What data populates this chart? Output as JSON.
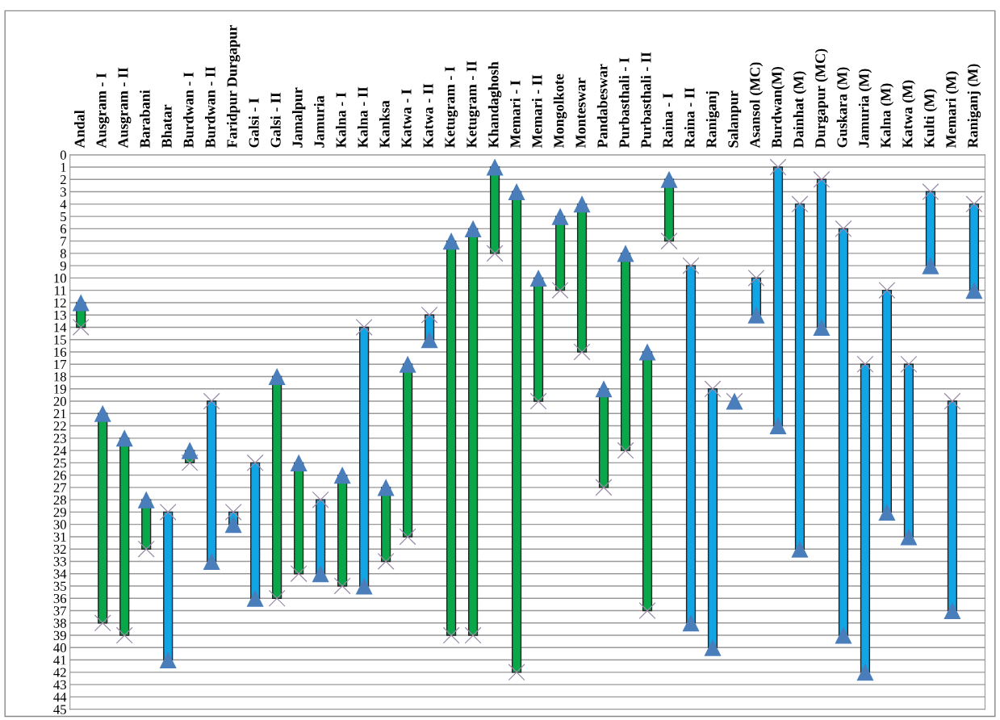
{
  "chart_data": {
    "type": "bar",
    "categories": [
      "Andal",
      "Ausgram - I",
      "Ausgram - II",
      "Barabani",
      "Bhatar",
      "Burdwan - I",
      "Burdwan - II",
      "Faridpur Durgapur",
      "Galsi - I",
      "Galsi - II",
      "Jamalpur",
      "Jamuria",
      "Kalna - I",
      "Kalna - II",
      "Kanksa",
      "Katwa - I",
      "Katwa - II",
      "Ketugram - I",
      "Ketugram - II",
      "Khandaghosh",
      "Memari - I",
      "Memari - II",
      "Mongolkote",
      "Monteswar",
      "Pandabeswar",
      "Purbasthali - I",
      "Purbasthali - II",
      "Raina - I",
      "Raina - II",
      "Raniganj",
      "Salanpur",
      "Asansol (MC)",
      "Burdwan(M)",
      "Dainhat (M)",
      "Durgapur (MC)",
      "Guskara (M)",
      "Jamuria (M)",
      "Kalna (M)",
      "Katwa (M)",
      "Kulti (M)",
      "Memari (M)",
      "Raniganj (M)"
    ],
    "series": [
      {
        "base": [
          12,
          21,
          23,
          28,
          41,
          24,
          33,
          30,
          36,
          18,
          25,
          34,
          26,
          35,
          27,
          17,
          15,
          7,
          6,
          1,
          3,
          10,
          5,
          4,
          19,
          8,
          16,
          2,
          38,
          40,
          null,
          13,
          22,
          32,
          14,
          39,
          42,
          29,
          31,
          9,
          37,
          11
        ],
        "values": [
          2,
          17,
          16,
          4,
          -12,
          1,
          -13,
          -1,
          -11,
          18,
          9,
          -6,
          9,
          -21,
          6,
          14,
          -2,
          32,
          33,
          7,
          39,
          10,
          6,
          12,
          8,
          16,
          21,
          5,
          -29,
          -21,
          null,
          -3,
          -21,
          -28,
          -12,
          -33,
          -25,
          -18,
          -14,
          -6,
          -17,
          -7
        ],
        "colors": [
          "#0aa64a",
          "#0aa64a",
          "#0aa64a",
          "#0aa64a",
          "#12a5e6",
          "#0aa64a",
          "#12a5e6",
          "#12a5e6",
          "#12a5e6",
          "#0aa64a",
          "#0aa64a",
          "#12a5e6",
          "#0aa64a",
          "#12a5e6",
          "#0aa64a",
          "#0aa64a",
          "#12a5e6",
          "#0aa64a",
          "#0aa64a",
          "#0aa64a",
          "#0aa64a",
          "#0aa64a",
          "#0aa64a",
          "#0aa64a",
          "#0aa64a",
          "#0aa64a",
          "#0aa64a",
          "#0aa64a",
          "#12a5e6",
          "#12a5e6",
          null,
          "#12a5e6",
          "#12a5e6",
          "#12a5e6",
          "#12a5e6",
          "#12a5e6",
          "#12a5e6",
          "#12a5e6",
          "#12a5e6",
          "#12a5e6",
          "#12a5e6",
          "#12a5e6"
        ]
      },
      {
        "type": "scatter",
        "marker": "triangle",
        "color": "#4a7ebb",
        "values": [
          12,
          21,
          23,
          28,
          41,
          24,
          33,
          30,
          36,
          18,
          25,
          34,
          26,
          35,
          27,
          17,
          15,
          7,
          6,
          1,
          3,
          10,
          5,
          4,
          19,
          8,
          16,
          2,
          38,
          40,
          20,
          13,
          22,
          32,
          14,
          39,
          42,
          29,
          31,
          9,
          37,
          11
        ]
      },
      {
        "type": "scatter",
        "marker": "cross",
        "color": "#9a8aa8",
        "values": [
          14,
          38,
          39,
          32,
          29,
          25,
          20,
          29,
          25,
          36,
          34,
          28,
          35,
          14,
          33,
          31,
          13,
          39,
          39,
          8,
          42,
          20,
          11,
          16,
          27,
          24,
          37,
          7,
          9,
          19,
          20,
          10,
          1,
          4,
          2,
          6,
          17,
          11,
          17,
          3,
          20,
          4
        ]
      }
    ],
    "ylim": [
      45,
      0
    ],
    "yticks": [
      0,
      1,
      2,
      3,
      4,
      5,
      6,
      7,
      8,
      9,
      10,
      11,
      12,
      13,
      14,
      15,
      16,
      17,
      18,
      19,
      20,
      21,
      22,
      23,
      24,
      25,
      26,
      27,
      28,
      29,
      30,
      31,
      32,
      33,
      34,
      35,
      36,
      37,
      38,
      39,
      40,
      41,
      42,
      43,
      44,
      45
    ],
    "grid": "y"
  }
}
